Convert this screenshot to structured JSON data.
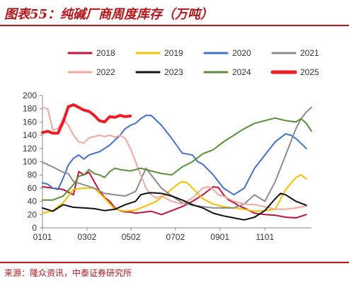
{
  "title": "图表55：纯碱厂商周度库存（万吨）",
  "source": "来源：隆众资讯，中泰证券研究所",
  "chart_data": {
    "type": "line",
    "xlabel": "",
    "ylabel": "",
    "ylim": [
      0,
      200
    ],
    "yticks": [
      0,
      20,
      40,
      60,
      80,
      100,
      120,
      140,
      160,
      180,
      200
    ],
    "xticks": [
      "0101",
      "0302",
      "0502",
      "0702",
      "0901",
      "1101"
    ],
    "grid": false,
    "legend": "top",
    "series": [
      {
        "name": "2018",
        "color": "#c0143c",
        "width": 2,
        "x": [
          1,
          3,
          5,
          7,
          8,
          9,
          10,
          11,
          12,
          13,
          14,
          15,
          16,
          17,
          18,
          19,
          20,
          22,
          24,
          26,
          28,
          30,
          32,
          34,
          35,
          36,
          37,
          38,
          39,
          40,
          42,
          44,
          46,
          48,
          50,
          52
        ],
        "y": [
          62,
          60,
          58,
          50,
          85,
          80,
          84,
          70,
          56,
          46,
          40,
          30,
          26,
          24,
          24,
          22,
          23,
          25,
          20,
          26,
          32,
          40,
          50,
          62,
          61,
          50,
          42,
          38,
          33,
          30,
          22,
          20,
          19,
          16,
          15,
          20
        ]
      },
      {
        "name": "2019",
        "color": "#f2c200",
        "width": 2,
        "x": [
          1,
          3,
          5,
          7,
          9,
          11,
          13,
          15,
          17,
          19,
          21,
          23,
          25,
          27,
          28,
          29,
          30,
          31,
          32,
          33,
          34,
          36,
          38,
          40,
          42,
          44,
          46,
          48,
          50,
          51,
          52
        ],
        "y": [
          22,
          26,
          38,
          58,
          60,
          60,
          45,
          28,
          25,
          27,
          33,
          40,
          52,
          65,
          70,
          68,
          60,
          52,
          44,
          40,
          36,
          32,
          30,
          28,
          25,
          26,
          28,
          58,
          76,
          80,
          74
        ]
      },
      {
        "name": "2020",
        "color": "#4472c4",
        "width": 2,
        "x": [
          1,
          2,
          3,
          4,
          5,
          6,
          7,
          8,
          9,
          10,
          12,
          14,
          16,
          17,
          18,
          19,
          20,
          21,
          22,
          24,
          26,
          28,
          30,
          31,
          32,
          33,
          34,
          36,
          38,
          39,
          40,
          41,
          42,
          44,
          46,
          48,
          49,
          50,
          52
        ],
        "y": [
          68,
          66,
          60,
          58,
          75,
          95,
          105,
          110,
          104,
          110,
          115,
          125,
          140,
          150,
          155,
          158,
          165,
          170,
          170,
          155,
          135,
          113,
          110,
          100,
          96,
          88,
          80,
          60,
          50,
          55,
          60,
          75,
          90,
          110,
          130,
          142,
          140,
          135,
          120
        ]
      },
      {
        "name": "2021",
        "color": "#8c8c8c",
        "width": 2,
        "x": [
          1,
          3,
          5,
          6,
          7,
          9,
          11,
          13,
          15,
          17,
          19,
          21,
          22,
          23,
          24,
          26,
          28,
          30,
          32,
          34,
          36,
          38,
          40,
          42,
          44,
          45,
          46,
          47,
          48,
          49,
          50,
          51,
          52,
          53
        ],
        "y": [
          99,
          92,
          84,
          82,
          70,
          65,
          60,
          52,
          50,
          48,
          55,
          90,
          80,
          70,
          60,
          48,
          38,
          34,
          32,
          30,
          30,
          30,
          36,
          50,
          40,
          55,
          70,
          90,
          110,
          130,
          150,
          165,
          175,
          182
        ]
      },
      {
        "name": "2022",
        "color": "#f4a6a0",
        "width": 2,
        "x": [
          1,
          2,
          3,
          4,
          5,
          6,
          7,
          8,
          9,
          10,
          11,
          12,
          13,
          14,
          15,
          16,
          17,
          18,
          19,
          20,
          21,
          22,
          23,
          24,
          26,
          28,
          30,
          32,
          33,
          34,
          35,
          36,
          38,
          40,
          42,
          44,
          46,
          48,
          50,
          52
        ],
        "y": [
          182,
          180,
          148,
          150,
          165,
          155,
          140,
          130,
          128,
          136,
          138,
          140,
          138,
          140,
          137,
          140,
          135,
          120,
          100,
          80,
          60,
          50,
          45,
          48,
          40,
          36,
          45,
          60,
          62,
          58,
          50,
          48,
          40,
          36,
          35,
          32,
          28,
          28,
          30,
          33
        ]
      },
      {
        "name": "2023",
        "color": "#111111",
        "width": 2,
        "x": [
          1,
          3,
          5,
          7,
          9,
          11,
          13,
          15,
          17,
          19,
          20,
          21,
          22,
          24,
          26,
          28,
          30,
          32,
          34,
          36,
          38,
          40,
          42,
          44,
          45,
          46,
          47,
          48,
          50,
          52
        ],
        "y": [
          30,
          25,
          35,
          31,
          30,
          29,
          26,
          28,
          35,
          40,
          50,
          52,
          53,
          52,
          48,
          42,
          35,
          30,
          22,
          18,
          15,
          12,
          16,
          26,
          35,
          44,
          52,
          50,
          40,
          34
        ]
      },
      {
        "name": "2024",
        "color": "#5a8f3c",
        "width": 2,
        "x": [
          1,
          3,
          5,
          7,
          8,
          9,
          10,
          11,
          12,
          13,
          14,
          15,
          16,
          18,
          20,
          22,
          24,
          26,
          28,
          30,
          32,
          34,
          36,
          38,
          40,
          42,
          44,
          46,
          48,
          50,
          51,
          52,
          53
        ],
        "y": [
          42,
          42,
          48,
          65,
          78,
          80,
          88,
          82,
          80,
          76,
          85,
          90,
          88,
          86,
          90,
          86,
          82,
          80,
          92,
          100,
          112,
          118,
          130,
          140,
          150,
          158,
          162,
          166,
          162,
          160,
          165,
          158,
          146
        ]
      },
      {
        "name": "2025",
        "color": "#ee1c25",
        "width": 4,
        "x": [
          1,
          2,
          3,
          4,
          5,
          6,
          7,
          8,
          9,
          10,
          11,
          12,
          13,
          14,
          15,
          16,
          17,
          18
        ],
        "y": [
          144,
          146,
          143,
          143,
          160,
          183,
          186,
          182,
          178,
          176,
          170,
          162,
          160,
          168,
          167,
          170,
          168,
          169
        ]
      }
    ]
  }
}
